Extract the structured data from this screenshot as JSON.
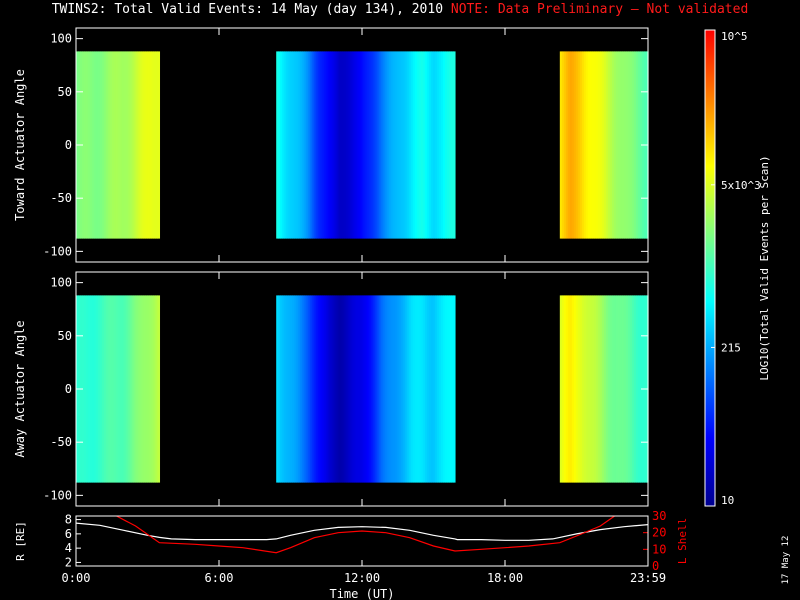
{
  "title": {
    "main": "TWINS2: Total Valid Events: 14 May (day 134), 2010",
    "note": "NOTE: Data Preliminary – Not validated"
  },
  "date_stamp": "17 May 12",
  "colorbar": {
    "label": "LOG10(Total Valid Events per Scan)",
    "tick_labels": [
      "10",
      "215",
      "5x10^3",
      "10^5"
    ],
    "tick_values": [
      10,
      215,
      5000,
      100000
    ],
    "scale": "log",
    "colors": [
      "#00008f",
      "#0000ff",
      "#0080ff",
      "#00ffff",
      "#80ff80",
      "#ffff00",
      "#ff8000",
      "#ff0000"
    ]
  },
  "chart_data": [
    {
      "type": "heatmap",
      "panel": "top",
      "ylabel": "Toward Actuator Angle",
      "ylim": [
        -110,
        110
      ],
      "yticks": [
        100,
        50,
        0,
        -50,
        -100
      ],
      "xlim": [
        0,
        24
      ],
      "data_ylim": [
        -88,
        88
      ],
      "segments": [
        {
          "start_hour": 0.0,
          "end_hour": 3.5,
          "log_levels": [
            3.25,
            3.28,
            3.3,
            3.35,
            3.4,
            3.45,
            3.55,
            3.65,
            3.75,
            3.8
          ]
        },
        {
          "start_hour": 8.4,
          "end_hour": 15.9,
          "log_levels": [
            2.8,
            2.6,
            2.4,
            2.2,
            1.8,
            1.5,
            1.3,
            1.4,
            1.5,
            1.8,
            2.1,
            2.3,
            2.5,
            2.65,
            2.75,
            2.6,
            2.7,
            2.8
          ]
        },
        {
          "start_hour": 20.3,
          "end_hour": 24.0,
          "log_levels": [
            4.0,
            4.2,
            4.1,
            3.9,
            3.75,
            3.6,
            3.45,
            3.3,
            3.2,
            3.1
          ]
        }
      ]
    },
    {
      "type": "heatmap",
      "panel": "middle",
      "ylabel": "Away Actuator Angle",
      "ylim": [
        -110,
        110
      ],
      "yticks": [
        100,
        50,
        0,
        -50,
        -100
      ],
      "xlim": [
        0,
        24
      ],
      "data_ylim": [
        -88,
        88
      ],
      "segments": [
        {
          "start_hour": 0.0,
          "end_hour": 3.5,
          "log_levels": [
            2.85,
            2.9,
            2.95,
            3.0,
            3.05,
            3.1,
            3.2,
            3.3,
            3.45,
            3.6
          ]
        },
        {
          "start_hour": 8.4,
          "end_hour": 15.9,
          "log_levels": [
            2.6,
            2.4,
            2.2,
            2.0,
            1.6,
            1.3,
            1.2,
            1.3,
            1.4,
            1.7,
            2.0,
            2.2,
            2.4,
            2.55,
            2.6,
            2.5,
            2.6,
            2.7
          ]
        },
        {
          "start_hour": 20.3,
          "end_hour": 24.0,
          "log_levels": [
            3.7,
            3.9,
            3.8,
            3.6,
            3.45,
            3.3,
            3.2,
            3.1,
            3.0,
            2.95
          ]
        }
      ]
    },
    {
      "type": "line",
      "panel": "bottom",
      "xlabel": "Time (UT)",
      "xlim": [
        0,
        24
      ],
      "xticks": [
        0,
        6,
        12,
        18,
        24
      ],
      "xtick_labels": [
        "0:00",
        "6:00",
        "12:00",
        "18:00",
        "23:59"
      ],
      "left_axis": {
        "label": "R [RE]",
        "ylim": [
          1.5,
          8.5
        ],
        "ticks": [
          2,
          4,
          6,
          8
        ],
        "color": "#ffffff"
      },
      "right_axis": {
        "label": "L Shell",
        "ylim": [
          0,
          30
        ],
        "ticks": [
          0,
          10,
          20,
          30
        ],
        "color": "#ff0000"
      },
      "series": [
        {
          "axis": "left",
          "color": "#ffffff",
          "x": [
            0,
            1,
            2,
            3,
            3.5,
            4,
            5,
            6,
            7,
            8,
            8.4,
            9,
            10,
            11,
            12,
            13,
            14,
            15,
            15.9,
            16,
            17,
            18,
            19,
            20,
            20.3,
            21,
            22,
            23,
            24
          ],
          "values": [
            7.5,
            7.2,
            6.5,
            5.8,
            5.5,
            5.3,
            5.2,
            5.2,
            5.2,
            5.2,
            5.3,
            5.8,
            6.5,
            6.9,
            7.0,
            6.9,
            6.5,
            5.8,
            5.3,
            5.2,
            5.2,
            5.1,
            5.1,
            5.3,
            5.5,
            6.0,
            6.6,
            7.0,
            7.3
          ]
        },
        {
          "axis": "right",
          "color": "#ff0000",
          "x": [
            1.7,
            2.5,
            3.5,
            5,
            6,
            7,
            8.4,
            9,
            10,
            11,
            12,
            13,
            14,
            15,
            15.9,
            17,
            18,
            19,
            20.3,
            21,
            22,
            22.6
          ],
          "values": [
            30,
            24,
            14,
            13,
            12,
            11,
            8,
            11,
            17,
            20,
            21,
            20,
            17,
            12,
            9,
            10,
            11,
            12,
            14,
            18,
            24,
            30
          ]
        }
      ]
    }
  ]
}
